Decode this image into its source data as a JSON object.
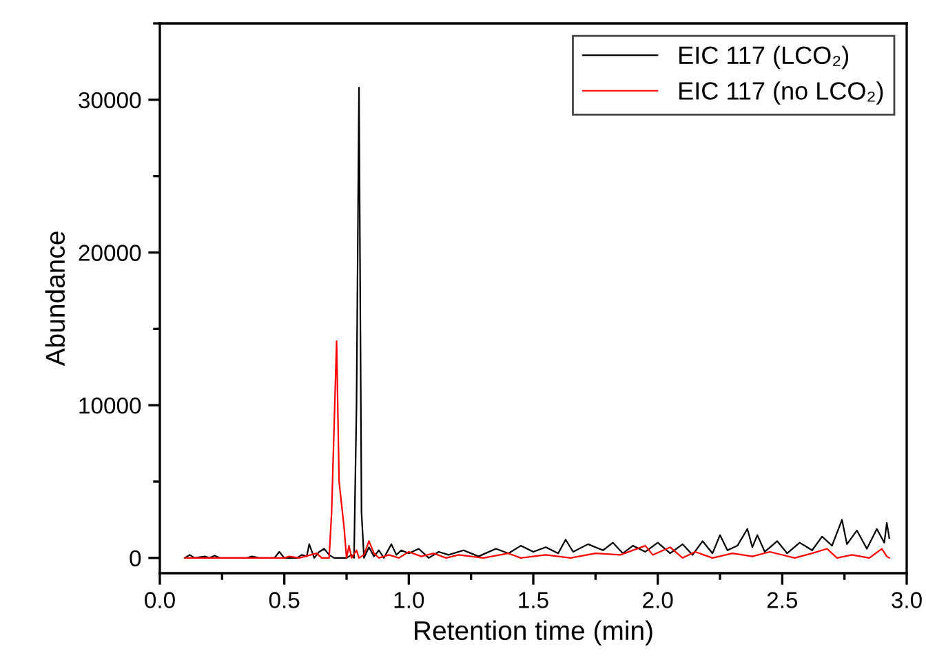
{
  "chart_data": {
    "type": "line",
    "xlabel": "Retention time (min)",
    "ylabel": "Abundance",
    "xlim": [
      0.0,
      3.0
    ],
    "xticks": [
      {
        "value": 0,
        "label": "0.0"
      },
      0.5,
      {
        "value": 1,
        "label": "1.0"
      },
      1.5,
      {
        "value": 2,
        "label": "2.0"
      },
      2.5,
      {
        "value": 3,
        "label": "3.0"
      }
    ],
    "ylim": [
      -1000,
      35000
    ],
    "yticks": [
      0,
      10000,
      20000,
      30000
    ],
    "grid": false,
    "legend": "top right",
    "marker": "none",
    "line_style": "solid",
    "series": [
      {
        "name": "EIC 117 (LCO₂)",
        "color": "#000000",
        "x": [
          0.1,
          0.12,
          0.14,
          0.18,
          0.2,
          0.22,
          0.24,
          0.35,
          0.37,
          0.4,
          0.46,
          0.48,
          0.5,
          0.55,
          0.57,
          0.59,
          0.6,
          0.62,
          0.64,
          0.66,
          0.68,
          0.7,
          0.75,
          0.77,
          0.78,
          0.79,
          0.8,
          0.81,
          0.82,
          0.84,
          0.86,
          0.88,
          0.9,
          0.93,
          0.95,
          0.97,
          1.0,
          1.04,
          1.08,
          1.12,
          1.16,
          1.22,
          1.28,
          1.35,
          1.4,
          1.45,
          1.5,
          1.55,
          1.6,
          1.63,
          1.66,
          1.72,
          1.78,
          1.82,
          1.86,
          1.9,
          1.95,
          2.0,
          2.05,
          2.1,
          2.14,
          2.18,
          2.22,
          2.25,
          2.28,
          2.32,
          2.36,
          2.38,
          2.4,
          2.43,
          2.48,
          2.52,
          2.57,
          2.62,
          2.66,
          2.7,
          2.74,
          2.76,
          2.8,
          2.84,
          2.88,
          2.91,
          2.92,
          2.93
        ],
        "values": [
          0,
          200,
          0,
          100,
          0,
          150,
          0,
          0,
          100,
          0,
          0,
          400,
          0,
          0,
          200,
          100,
          900,
          0,
          400,
          600,
          200,
          0,
          0,
          200,
          0,
          10000,
          30800,
          3000,
          0,
          700,
          100,
          500,
          0,
          900,
          200,
          500,
          300,
          600,
          0,
          400,
          200,
          500,
          100,
          600,
          300,
          800,
          400,
          700,
          300,
          1200,
          400,
          900,
          500,
          1000,
          300,
          800,
          400,
          1000,
          300,
          900,
          200,
          1100,
          300,
          1500,
          500,
          800,
          1900,
          700,
          1500,
          400,
          1100,
          300,
          1000,
          500,
          1400,
          800,
          2500,
          900,
          1800,
          600,
          1900,
          1000,
          2300,
          1300
        ]
      },
      {
        "name": "EIC 117 (no LCO₂)",
        "color": "#ff0000",
        "x": [
          0.1,
          0.3,
          0.4,
          0.5,
          0.52,
          0.56,
          0.63,
          0.65,
          0.68,
          0.69,
          0.71,
          0.72,
          0.74,
          0.75,
          0.76,
          0.77,
          0.79,
          0.8,
          0.82,
          0.84,
          0.86,
          0.88,
          0.92,
          0.96,
          1.0,
          1.05,
          1.1,
          1.15,
          1.2,
          1.3,
          1.4,
          1.45,
          1.55,
          1.65,
          1.75,
          1.85,
          1.95,
          1.98,
          2.05,
          2.1,
          2.15,
          2.22,
          2.3,
          2.38,
          2.45,
          2.55,
          2.62,
          2.68,
          2.72,
          2.78,
          2.85,
          2.9,
          2.92,
          2.93
        ],
        "values": [
          0,
          0,
          0,
          0,
          100,
          0,
          300,
          0,
          0,
          3000,
          14200,
          5000,
          2000,
          0,
          800,
          0,
          500,
          0,
          200,
          1100,
          300,
          0,
          200,
          0,
          400,
          100,
          300,
          0,
          200,
          0,
          300,
          0,
          200,
          0,
          300,
          200,
          800,
          200,
          700,
          0,
          400,
          0,
          300,
          100,
          400,
          0,
          300,
          600,
          0,
          200,
          0,
          600,
          100,
          0
        ]
      }
    ]
  }
}
